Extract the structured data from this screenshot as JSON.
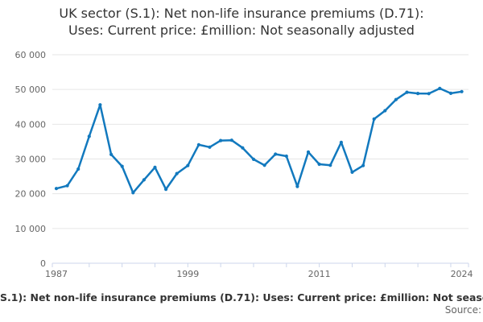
{
  "title": {
    "line1": "UK sector (S.1): Net non-life insurance premiums (D.71):",
    "line2": "Uses: Current price: £million: Not seasonally adjusted"
  },
  "footer": {
    "series_caption": "S.1): Net non-life insurance premiums (D.71): Uses: Current price: £million: Not seaso",
    "source_label": "Source:"
  },
  "colors": {
    "line": "#1279be",
    "grid": "#e6e6e6",
    "axis": "#ccd6eb",
    "axis_text": "#666666",
    "title_text": "#333333"
  },
  "chart_data": {
    "type": "line",
    "title": "UK sector (S.1): Net non-life insurance premiums (D.71): Uses: Current price: £million: Not seasonally adjusted",
    "xlabel": "",
    "ylabel": "",
    "ylim": [
      0,
      60000
    ],
    "grid": "horizontal",
    "legend": "none",
    "markers": true,
    "x": [
      1987,
      1988,
      1989,
      1990,
      1991,
      1992,
      1993,
      1994,
      1995,
      1996,
      1997,
      1998,
      1999,
      2000,
      2001,
      2002,
      2003,
      2004,
      2005,
      2006,
      2007,
      2008,
      2009,
      2010,
      2011,
      2012,
      2013,
      2014,
      2015,
      2016,
      2017,
      2018,
      2019,
      2020,
      2021,
      2022,
      2023,
      2024
    ],
    "values": [
      21500,
      22300,
      27100,
      36500,
      45600,
      31300,
      27900,
      20300,
      24000,
      27600,
      21300,
      25800,
      28100,
      34100,
      33400,
      35300,
      35400,
      33200,
      29900,
      28200,
      31400,
      30800,
      22100,
      32000,
      28500,
      28200,
      34800,
      26200,
      28100,
      41500,
      43900,
      47100,
      49200,
      48850,
      48800,
      50300,
      48900,
      49400
    ],
    "yticks": [
      {
        "value": 0,
        "label": "0"
      },
      {
        "value": 10000,
        "label": "10 000"
      },
      {
        "value": 20000,
        "label": "20 000"
      },
      {
        "value": 30000,
        "label": "30 000"
      },
      {
        "value": 40000,
        "label": "40 000"
      },
      {
        "value": 50000,
        "label": "50 000"
      },
      {
        "value": 60000,
        "label": "60 000"
      }
    ],
    "xticks_labeled": [
      {
        "year": 1987,
        "label": "1987"
      },
      {
        "year": 1999,
        "label": "1999"
      },
      {
        "year": 2011,
        "label": "2011"
      },
      {
        "year": 2024,
        "label": "2024"
      }
    ],
    "xtick_step_years": 3
  }
}
